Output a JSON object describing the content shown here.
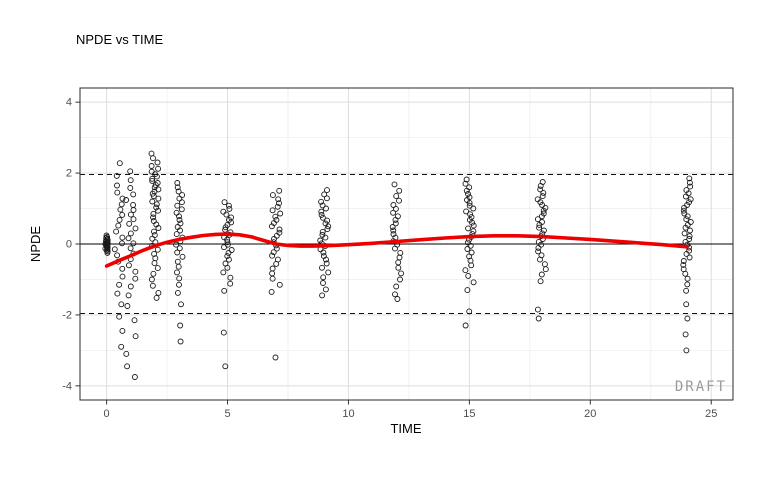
{
  "chart_data": {
    "type": "scatter",
    "title": "NPDE vs TIME",
    "xlabel": "TIME",
    "ylabel": "NPDE",
    "watermark": "DRAFT",
    "xlim": [
      -1.1,
      25.9
    ],
    "ylim": [
      -4.4,
      4.4
    ],
    "x_ticks": [
      0,
      5,
      10,
      15,
      20,
      25
    ],
    "y_ticks": [
      -4,
      -2,
      0,
      2,
      4
    ],
    "x_minor_ticks": [
      2.5,
      7.5,
      12.5,
      17.5,
      22.5
    ],
    "y_minor_ticks": [
      -3,
      -1,
      1,
      3
    ],
    "grid": true,
    "legend": "none",
    "point_style": "open-circle",
    "reference_lines": {
      "solid": [
        0
      ],
      "dashed": [
        1.96,
        -1.96
      ]
    },
    "clusters": [
      {
        "time": 0,
        "jitter": 0.05,
        "npde": [
          -0.25,
          -0.21,
          -0.18,
          -0.15,
          -0.13,
          -0.11,
          -0.09,
          -0.07,
          -0.06,
          -0.05,
          -0.04,
          -0.03,
          -0.02,
          -0.01,
          0,
          0.01,
          0.02,
          0.03,
          0.05,
          0.07,
          0.09,
          0.11,
          0.14,
          0.17,
          0.2,
          0.24
        ]
      },
      {
        "time": 0.5,
        "jitter": 0.18,
        "npde": [
          2.28,
          1.92,
          1.65,
          1.45,
          1.28,
          1.12,
          0.97,
          0.82,
          0.68,
          0.52,
          0.35,
          0.18,
          0.02,
          -0.15,
          -0.32,
          -0.5,
          -0.7,
          -0.92,
          -1.15,
          -1.4,
          -1.7,
          -2.05,
          -2.45,
          -2.9
        ]
      },
      {
        "time": 1,
        "jitter": 0.2,
        "npde": [
          2.05,
          1.8,
          1.58,
          1.4,
          1.24,
          1.1,
          0.96,
          0.83,
          0.7,
          0.57,
          0.44,
          0.3,
          0.16,
          0.02,
          -0.12,
          -0.27,
          -0.43,
          -0.6,
          -0.78,
          -0.98,
          -1.2,
          -1.45,
          -1.75,
          -2.15,
          -2.6,
          -3.1,
          -3.45,
          -3.75
        ]
      },
      {
        "time": 2,
        "jitter": 0.15,
        "npde": [
          2.55,
          2.42,
          2.3,
          2.2,
          2.12,
          2.04,
          1.97,
          1.9,
          1.84,
          1.78,
          1.72,
          1.66,
          1.6,
          1.54,
          1.48,
          1.42,
          1.35,
          1.28,
          1.2,
          1.12,
          1.03,
          0.94,
          0.85,
          0.75,
          0.65,
          0.55,
          0.45,
          0.35,
          0.25,
          0.15,
          0.05,
          -0.05,
          -0.16,
          -0.28,
          -0.4,
          -0.54,
          -0.68,
          -0.84,
          -1,
          -1.18,
          -1.38,
          -1.52
        ]
      },
      {
        "time": 3,
        "jitter": 0.15,
        "npde": [
          1.72,
          1.6,
          1.48,
          1.38,
          1.28,
          1.18,
          1.08,
          0.98,
          0.88,
          0.78,
          0.68,
          0.58,
          0.48,
          0.38,
          0.28,
          0.18,
          0.08,
          -0.02,
          -0.12,
          -0.24,
          -0.36,
          -0.5,
          -0.64,
          -0.8,
          -0.97,
          -1.15,
          -1.38,
          -1.7,
          -2.3,
          -2.75
        ]
      },
      {
        "time": 5,
        "jitter": 0.18,
        "npde": [
          1.18,
          1.08,
          0.99,
          0.91,
          0.83,
          0.75,
          0.68,
          0.61,
          0.54,
          0.47,
          0.4,
          0.33,
          0.26,
          0.19,
          0.12,
          0.05,
          -0.02,
          -0.09,
          -0.17,
          -0.25,
          -0.34,
          -0.44,
          -0.55,
          -0.67,
          -0.8,
          -0.95,
          -1.12,
          -1.32,
          -2.5,
          -3.45
        ]
      },
      {
        "time": 7,
        "jitter": 0.18,
        "npde": [
          1.5,
          1.38,
          1.26,
          1.15,
          1.05,
          0.95,
          0.86,
          0.77,
          0.68,
          0.59,
          0.5,
          0.41,
          0.32,
          0.23,
          0.14,
          0.05,
          -0.04,
          -0.13,
          -0.23,
          -0.33,
          -0.44,
          -0.56,
          -0.69,
          -0.83,
          -0.98,
          -1.15,
          -1.35,
          -3.2
        ]
      },
      {
        "time": 9,
        "jitter": 0.18,
        "npde": [
          1.52,
          1.4,
          1.29,
          1.19,
          1.09,
          1,
          0.91,
          0.82,
          0.74,
          0.66,
          0.58,
          0.5,
          0.42,
          0.34,
          0.26,
          0.18,
          0.1,
          0.02,
          -0.06,
          -0.15,
          -0.24,
          -0.34,
          -0.44,
          -0.55,
          -0.67,
          -0.8,
          -0.94,
          -1.1,
          -1.28,
          -1.45
        ]
      },
      {
        "time": 12,
        "jitter": 0.18,
        "npde": [
          1.68,
          1.5,
          1.35,
          1.22,
          1.1,
          0.99,
          0.88,
          0.78,
          0.68,
          0.58,
          0.48,
          0.38,
          0.28,
          0.18,
          0.08,
          -0.02,
          -0.13,
          -0.25,
          -0.38,
          -0.52,
          -0.67,
          -0.83,
          -1,
          -1.2,
          -1.42,
          -1.55
        ]
      },
      {
        "time": 15,
        "jitter": 0.18,
        "npde": [
          1.82,
          1.7,
          1.6,
          1.5,
          1.41,
          1.32,
          1.24,
          1.16,
          1.08,
          1,
          0.92,
          0.84,
          0.76,
          0.68,
          0.6,
          0.52,
          0.44,
          0.36,
          0.28,
          0.2,
          0.12,
          0.04,
          -0.05,
          -0.14,
          -0.24,
          -0.35,
          -0.47,
          -0.6,
          -0.74,
          -0.9,
          -1.08,
          -1.3,
          -1.9,
          -2.3
        ]
      },
      {
        "time": 18,
        "jitter": 0.18,
        "npde": [
          1.75,
          1.64,
          1.54,
          1.44,
          1.35,
          1.26,
          1.18,
          1.1,
          1.02,
          0.94,
          0.86,
          0.78,
          0.7,
          0.62,
          0.54,
          0.46,
          0.38,
          0.3,
          0.22,
          0.14,
          0.06,
          -0.02,
          -0.11,
          -0.21,
          -0.32,
          -0.44,
          -0.57,
          -0.71,
          -0.86,
          -1.05,
          -1.85,
          -2.1
        ]
      },
      {
        "time": 24,
        "jitter": 0.16,
        "npde": [
          1.85,
          1.73,
          1.62,
          1.52,
          1.43,
          1.34,
          1.26,
          1.18,
          1.1,
          1.02,
          0.94,
          0.86,
          0.78,
          0.7,
          0.62,
          0.54,
          0.46,
          0.38,
          0.3,
          0.22,
          0.14,
          0.06,
          -0.02,
          -0.1,
          -0.19,
          -0.28,
          -0.38,
          -0.48,
          -0.59,
          -0.71,
          -0.84,
          -0.98,
          -1.14,
          -1.32,
          -1.7,
          -2.1,
          -2.55,
          -3
        ]
      }
    ],
    "smooth": {
      "name": "loess-smooth",
      "color": "#ee0000",
      "x": [
        0,
        0.5,
        1,
        1.5,
        2,
        2.5,
        3,
        3.5,
        4,
        4.5,
        5,
        5.5,
        6,
        6.5,
        7,
        7.5,
        8,
        8.5,
        9,
        10,
        11,
        12,
        13,
        14,
        15,
        16,
        17,
        18,
        19,
        20,
        21,
        22,
        23,
        24
      ],
      "y": [
        -0.62,
        -0.47,
        -0.33,
        -0.18,
        -0.05,
        0.05,
        0.13,
        0.19,
        0.24,
        0.27,
        0.28,
        0.26,
        0.2,
        0.1,
        0,
        -0.04,
        -0.06,
        -0.06,
        -0.05,
        -0.02,
        0.02,
        0.07,
        0.12,
        0.17,
        0.21,
        0.23,
        0.23,
        0.21,
        0.17,
        0.13,
        0.08,
        0.03,
        -0.02,
        -0.08
      ]
    },
    "colors": {
      "point_stroke": "#1a1a1a",
      "grid_major": "#dddddd",
      "grid_minor": "#efefef",
      "panel_border": "#2b2b2b",
      "reference": "#111111",
      "watermark": "#9b9b9b"
    }
  }
}
